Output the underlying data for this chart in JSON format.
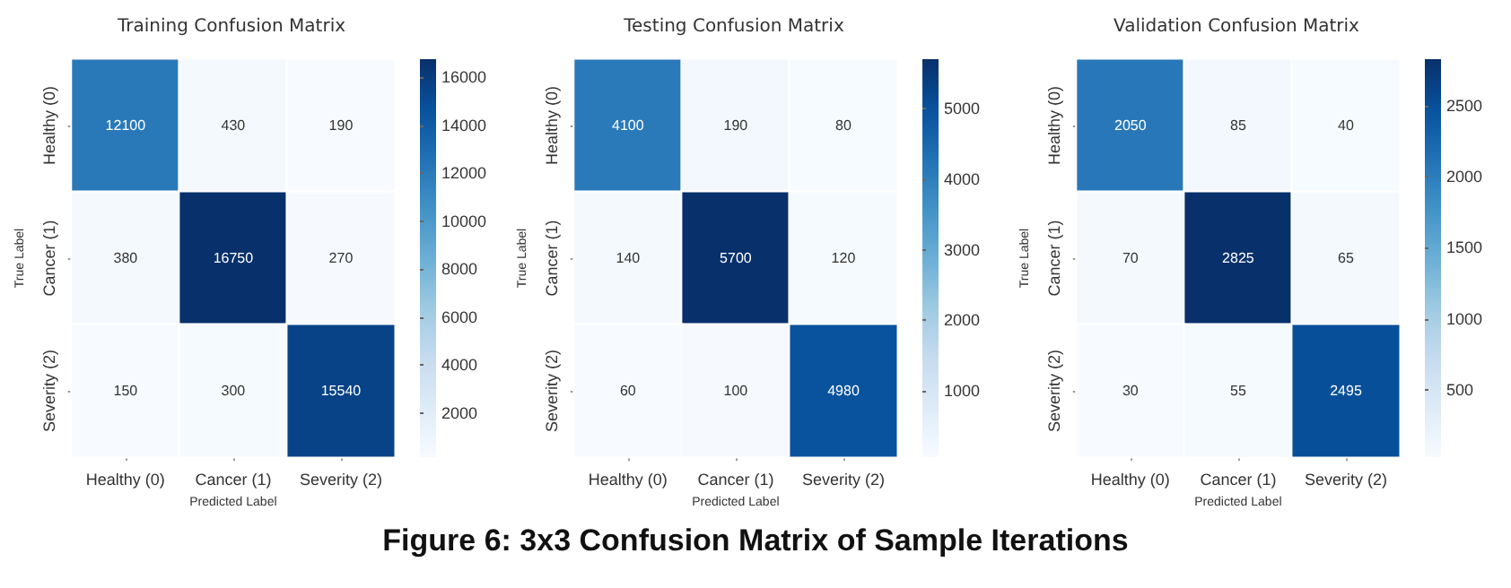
{
  "chart_data": [
    {
      "type": "heatmap",
      "title": "Training Confusion Matrix",
      "xlabel": "Predicted Label",
      "ylabel": "True Label",
      "categories": [
        "Healthy (0)",
        "Cancer (1)",
        "Severity (2)"
      ],
      "y_categories": [
        "Healthy (0)",
        "Cancer (1)",
        "Severity (2)"
      ],
      "cells": [
        [
          12100,
          430,
          190
        ],
        [
          380,
          16750,
          270
        ],
        [
          150,
          300,
          15540
        ]
      ],
      "clim": [
        150,
        16750
      ],
      "cticks": [
        2000,
        4000,
        6000,
        8000,
        10000,
        12000,
        14000,
        16000
      ],
      "data_labels": true
    },
    {
      "type": "heatmap",
      "title": "Testing Confusion Matrix",
      "xlabel": "Predicted Label",
      "ylabel": "True Label",
      "categories": [
        "Healthy (0)",
        "Cancer (1)",
        "Severity (2)"
      ],
      "y_categories": [
        "Healthy (0)",
        "Cancer (1)",
        "Severity (2)"
      ],
      "cells": [
        [
          4100,
          190,
          80
        ],
        [
          140,
          5700,
          120
        ],
        [
          60,
          100,
          4980
        ]
      ],
      "clim": [
        60,
        5700
      ],
      "cticks": [
        1000,
        2000,
        3000,
        4000,
        5000
      ],
      "data_labels": true,
      "annotations": [
        "Figure 6: 3x3 Confusion Matrix of Sample Iterations"
      ]
    },
    {
      "type": "heatmap",
      "title": "Validation Confusion Matrix",
      "xlabel": "Predicted Label",
      "ylabel": "True Label",
      "categories": [
        "Healthy (0)",
        "Cancer (1)",
        "Severity (2)"
      ],
      "y_categories": [
        "Healthy (0)",
        "Cancer (1)",
        "Severity (2)"
      ],
      "cells": [
        [
          2050,
          85,
          40
        ],
        [
          70,
          2825,
          65
        ],
        [
          30,
          55,
          2495
        ]
      ],
      "clim": [
        30,
        2825
      ],
      "cticks": [
        500,
        1000,
        1500,
        2000,
        2500
      ],
      "data_labels": true
    }
  ]
}
